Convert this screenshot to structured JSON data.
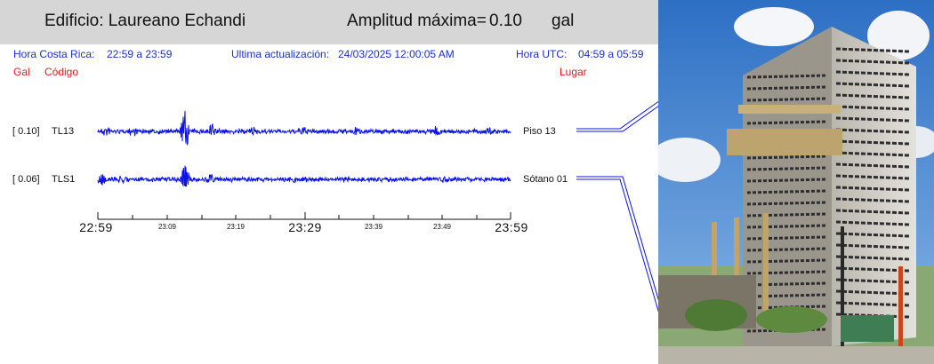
{
  "header": {
    "building_label": "Edificio: Laureano Echandi",
    "amplitude_label": "Amplitud máxima=",
    "amplitude_value": "0.10",
    "amplitude_unit": "gal"
  },
  "info": {
    "cr_time_label": "Hora Costa Rica:",
    "cr_time_range": "22:59 a 23:59",
    "update_label": "Ultima actualización:",
    "update_value": "24/03/2025 12:00:05 AM",
    "utc_label": "Hora UTC:",
    "utc_range": "04:59 a 05:59"
  },
  "columns": {
    "gal": "Gal",
    "code": "Código",
    "place": "Lugar"
  },
  "traces": [
    {
      "amp": "[   0.10]",
      "code": "TL13",
      "place": "Piso 13",
      "color": "#0a10e8"
    },
    {
      "amp": "[   0.06]",
      "code": "TLS1",
      "place": "Sótano 01",
      "color": "#0a10e8"
    }
  ],
  "axis": {
    "major_labels": [
      "22:59",
      "23:29",
      "23:59"
    ],
    "minor_labels": [
      "23:09",
      "23:19",
      "23:39",
      "23:49"
    ]
  },
  "photo": {
    "description_icon": "building-photo"
  },
  "colors": {
    "accent_blue": "#1b2fd6",
    "accent_red": "#e21b1b",
    "header_bg": "#d6d6d6",
    "trace": "#0a10e8"
  }
}
